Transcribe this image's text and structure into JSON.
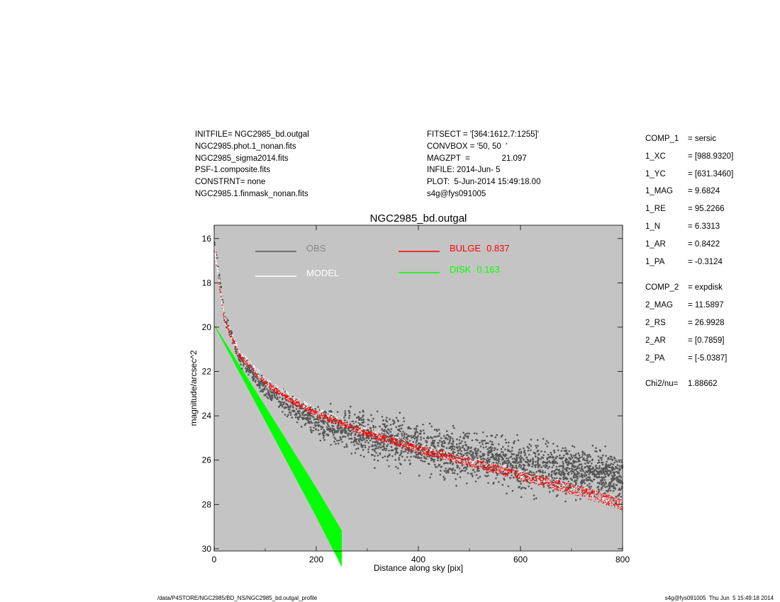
{
  "header_left": [
    "INITFILE= NGC2985_bd.outgal",
    "NGC2985.phot.1_nonan.fits",
    "NGC2985_sigma2014.fits",
    "PSF-1.composite.fits",
    "CONSTRNT= none",
    "NGC2985.1.finmask_nonan.fits"
  ],
  "header_mid": [
    "FITSECT = '[364:1612,7:1255]'",
    "CONVBOX = '50, 50  '",
    "MAGZPT  =              21.097",
    "INFILE: 2014-Jun- 5",
    "PLOT:  5-Jun-2014 15:49:18.00",
    "s4g@fys091005"
  ],
  "params": {
    "comp1": {
      "label": "COMP_1",
      "value": "= sersic"
    },
    "xc1": {
      "label": "1_XC",
      "value": "= [988.9320]"
    },
    "yc1": {
      "label": "1_YC",
      "value": "= [631.3460]"
    },
    "mag1": {
      "label": "1_MAG",
      "value": "= 9.6824"
    },
    "re1": {
      "label": "1_RE",
      "value": "= 95.2266"
    },
    "n1": {
      "label": "1_N",
      "value": "= 6.3313"
    },
    "ar1": {
      "label": "1_AR",
      "value": "= 0.8422"
    },
    "pa1": {
      "label": "1_PA",
      "value": "= -0.3124"
    },
    "comp2": {
      "label": "COMP_2",
      "value": "= expdisk"
    },
    "mag2": {
      "label": "2_MAG",
      "value": "= 11.5897"
    },
    "rs2": {
      "label": "2_RS",
      "value": "= 26.9928"
    },
    "ar2": {
      "label": "2_AR",
      "value": "= [0.7859]"
    },
    "pa2": {
      "label": "2_PA",
      "value": "= [-5.0387]"
    },
    "chi2": {
      "label": "Chi2/nu=",
      "value": "1.88662"
    }
  },
  "footer": {
    "left": "/data/P4STORE/NGC2985/BD_NS/NGC2985_bd.outgal_profile",
    "right": "s4g@fys091005  Thu Jun  5 15:49:18 2014"
  },
  "colors": {
    "plot_bg": "#c4c4c4",
    "obs": "#555555",
    "model": "#ffffff",
    "bulge": "#ff0000",
    "disk": "#00ff00",
    "legend_obs_text": "#888888"
  },
  "chart_data": {
    "type": "scatter",
    "title": "NGC2985_bd.outgal",
    "xlabel": "Distance along sky [pix]",
    "ylabel": "magnitude/arcsec^2",
    "xlim": [
      0,
      800
    ],
    "ylim": [
      15.4,
      30.1
    ],
    "y_inverted": true,
    "grid": false,
    "legend_position": "top-center",
    "x_ticks": [
      0,
      200,
      400,
      600,
      800
    ],
    "y_ticks": [
      16,
      18,
      20,
      22,
      24,
      26,
      28,
      30
    ],
    "series": [
      {
        "name": "OBS",
        "kind": "scatter",
        "x": [
          1,
          20,
          50,
          100,
          150,
          200,
          300,
          400,
          500,
          600,
          700,
          800
        ],
        "y": [
          16.2,
          19.5,
          21.4,
          22.8,
          23.6,
          24.2,
          24.9,
          25.4,
          25.8,
          26.2,
          26.5,
          26.8
        ]
      },
      {
        "name": "MODEL",
        "kind": "band",
        "x": [
          1,
          20,
          50,
          100,
          150,
          200,
          300,
          400,
          500,
          600,
          700,
          800
        ],
        "y": [
          16.5,
          19.6,
          21.2,
          22.4,
          23.2,
          23.8,
          24.7,
          25.4,
          26.0,
          26.6,
          27.2,
          27.9
        ]
      },
      {
        "name": "BULGE",
        "value": "0.837",
        "kind": "band",
        "x": [
          1,
          20,
          50,
          100,
          150,
          200,
          300,
          400,
          500,
          600,
          700,
          800
        ],
        "y": [
          16.6,
          19.7,
          21.3,
          22.5,
          23.3,
          23.9,
          24.8,
          25.5,
          26.1,
          26.7,
          27.3,
          28.0
        ]
      },
      {
        "name": "DISK",
        "value": "0.163",
        "kind": "band",
        "x": [
          0,
          100,
          200,
          250
        ],
        "y": [
          19.9,
          23.9,
          27.9,
          30.0
        ]
      }
    ]
  }
}
